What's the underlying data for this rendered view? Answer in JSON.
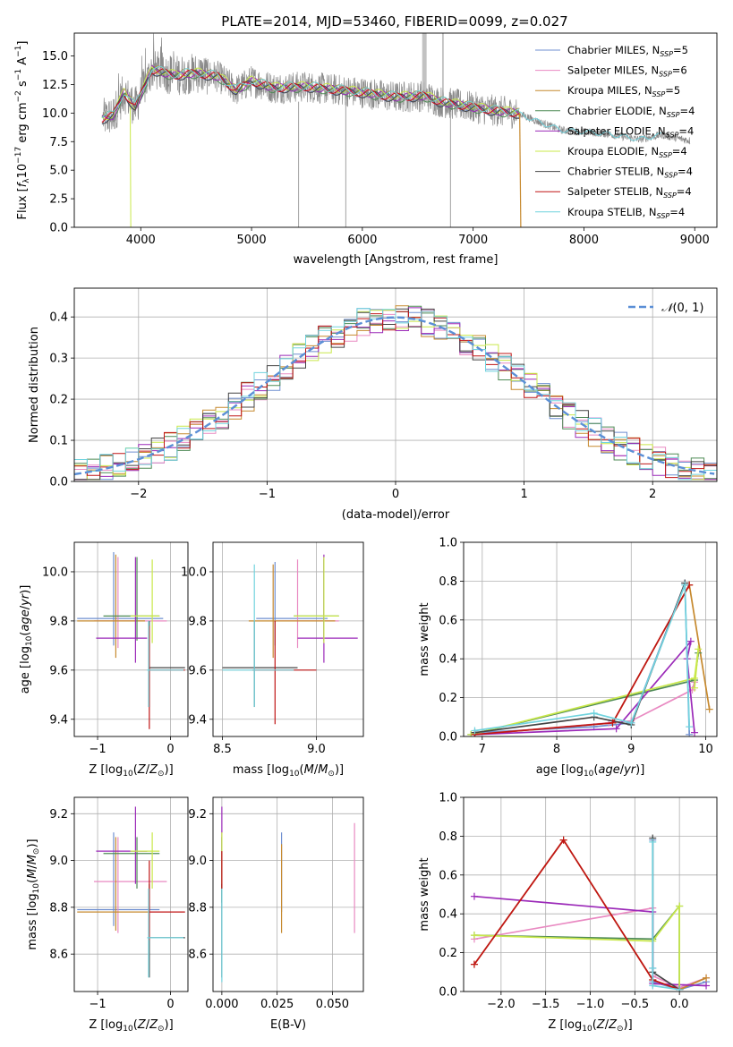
{
  "figure": {
    "title": "PLATE=2014, MJD=53460, FIBERID=0099, z=0.027"
  },
  "series_styles": [
    {
      "name": "Chabrier MILES, N_SSP=5",
      "color": "#6f8fd0"
    },
    {
      "name": "Salpeter MILES, N_SSP=6",
      "color": "#e98ac2"
    },
    {
      "name": "Kroupa MILES, N_SSP=5",
      "color": "#c6892e"
    },
    {
      "name": "Chabrier ELODIE, N_SSP=4",
      "color": "#4e8a55"
    },
    {
      "name": "Salpeter ELODIE, N_SSP=4",
      "color": "#9b29b8"
    },
    {
      "name": "Kroupa ELODIE, N_SSP=4",
      "color": "#c9e84a"
    },
    {
      "name": "Chabrier STELIB, N_SSP=4",
      "color": "#444444"
    },
    {
      "name": "Salpeter STELIB, N_SSP=4",
      "color": "#c01515"
    },
    {
      "name": "Kroupa STELIB, N_SSP=4",
      "color": "#71d3de"
    }
  ],
  "chart_data": [
    {
      "id": "spectrum",
      "type": "line",
      "xlabel": "wavelength [Angstrom, rest frame]",
      "ylabel": "Flux [f_λ 10^-17 erg cm^-2 s^-1 A^-1]",
      "xlim": [
        3400,
        9200
      ],
      "ylim": [
        0,
        17
      ],
      "xticks": [
        4000,
        5000,
        6000,
        7000,
        8000,
        9000
      ],
      "yticks": [
        0.0,
        2.5,
        5.0,
        7.5,
        10.0,
        12.5,
        15.0
      ],
      "grid": false,
      "legend_position": "top-right",
      "legend": [
        {
          "base": "Chabrier MILES, N",
          "sub": "SSP",
          "tail": "=5"
        },
        {
          "base": "Salpeter MILES, N",
          "sub": "SSP",
          "tail": "=6"
        },
        {
          "base": "Kroupa MILES, N",
          "sub": "SSP",
          "tail": "=5"
        },
        {
          "base": "Chabrier ELODIE, N",
          "sub": "SSP",
          "tail": "=4"
        },
        {
          "base": "Salpeter ELODIE, N",
          "sub": "SSP",
          "tail": "=4"
        },
        {
          "base": "Kroupa ELODIE, N",
          "sub": "SSP",
          "tail": "=4"
        },
        {
          "base": "Chabrier STELIB, N",
          "sub": "SSP",
          "tail": "=4"
        },
        {
          "base": "Salpeter STELIB, N",
          "sub": "SSP",
          "tail": "=4"
        },
        {
          "base": "Kroupa STELIB, N",
          "sub": "SSP",
          "tail": "=4"
        }
      ],
      "data_shape": [
        [
          3650,
          9.5
        ],
        [
          3750,
          9.8
        ],
        [
          3850,
          11.8
        ],
        [
          3950,
          10.5
        ],
        [
          4100,
          13.8
        ],
        [
          4300,
          13.3
        ],
        [
          4500,
          13.5
        ],
        [
          4700,
          13.2
        ],
        [
          4861,
          12.0
        ],
        [
          5000,
          12.8
        ],
        [
          5200,
          12.2
        ],
        [
          5500,
          12.3
        ],
        [
          5800,
          12.0
        ],
        [
          6000,
          11.8
        ],
        [
          6300,
          11.4
        ],
        [
          6563,
          11.5
        ],
        [
          6700,
          11.0
        ],
        [
          7000,
          10.5
        ],
        [
          7200,
          10.2
        ],
        [
          7400,
          10.0
        ],
        [
          7600,
          9.2
        ],
        [
          7800,
          8.5
        ],
        [
          8200,
          8.2
        ],
        [
          8500,
          7.7
        ],
        [
          8700,
          8.1
        ],
        [
          8950,
          7.6
        ]
      ],
      "model_range": [
        3650,
        7420
      ]
    },
    {
      "id": "residual_histogram",
      "type": "histogram",
      "xlabel": "(data-model)/error",
      "ylabel": "Normed distribution",
      "xlim": [
        -2.5,
        2.5
      ],
      "ylim": [
        0,
        0.47
      ],
      "xticks": [
        -2,
        -1,
        0,
        1,
        2
      ],
      "yticks": [
        0.0,
        0.1,
        0.2,
        0.3,
        0.4
      ],
      "grid": true,
      "legend_position": "top-right",
      "legend_label": "N(0,1)",
      "reference_curve": "standard normal density"
    },
    {
      "id": "age_vs_Z",
      "type": "errorbar",
      "xlabel": "Z [log10(Z/Z☉)]",
      "ylabel": "age [log10(age/yr)]",
      "xlim": [
        -1.32,
        0.24
      ],
      "ylim": [
        9.33,
        10.12
      ],
      "xticks": [
        -1,
        0
      ],
      "yticks": [
        9.4,
        9.6,
        9.8,
        10.0
      ],
      "grid": true,
      "points": [
        {
          "s": 0,
          "x": -0.78,
          "y": 9.81,
          "xlo": -1.28,
          "xhi": -0.1,
          "ylo": 9.7,
          "yhi": 10.08
        },
        {
          "s": 1,
          "x": -0.72,
          "y": 9.8,
          "xlo": -1.05,
          "xhi": -0.05,
          "ylo": 9.69,
          "yhi": 10.06
        },
        {
          "s": 2,
          "x": -0.75,
          "y": 9.8,
          "xlo": -1.28,
          "xhi": -0.35,
          "ylo": 9.65,
          "yhi": 10.07
        },
        {
          "s": 3,
          "x": -0.46,
          "y": 9.82,
          "xlo": -0.92,
          "xhi": -0.15,
          "ylo": 9.72,
          "yhi": 10.06
        },
        {
          "s": 4,
          "x": -0.48,
          "y": 9.73,
          "xlo": -1.02,
          "xhi": -0.32,
          "ylo": 9.63,
          "yhi": 10.06
        },
        {
          "s": 5,
          "x": -0.25,
          "y": 9.82,
          "xlo": -0.55,
          "xhi": -0.15,
          "ylo": 9.71,
          "yhi": 10.05
        },
        {
          "s": 6,
          "x": -0.29,
          "y": 9.61,
          "xlo": -0.3,
          "xhi": 0.2,
          "ylo": 9.45,
          "yhi": 9.8
        },
        {
          "s": 7,
          "x": -0.29,
          "y": 9.6,
          "xlo": -0.3,
          "xhi": 0.2,
          "ylo": 9.36,
          "yhi": 9.78
        },
        {
          "s": 8,
          "x": -0.3,
          "y": 9.6,
          "xlo": -0.32,
          "xhi": 0.18,
          "ylo": 9.45,
          "yhi": 9.8
        }
      ]
    },
    {
      "id": "age_vs_mass",
      "type": "errorbar",
      "xlabel": "mass [log10(M/M☉)]",
      "ylabel": "",
      "xlim": [
        8.45,
        9.25
      ],
      "ylim": [
        9.33,
        10.12
      ],
      "xticks": [
        8.5,
        9.0
      ],
      "yticks": [
        9.4,
        9.6,
        9.8,
        10.0
      ],
      "grid": true,
      "points": [
        {
          "s": 0,
          "x": 8.78,
          "y": 9.81,
          "xlo": 8.68,
          "xhi": 9.06,
          "ylo": 9.7,
          "yhi": 10.04
        },
        {
          "s": 1,
          "x": 8.9,
          "y": 9.8,
          "xlo": 8.78,
          "xhi": 9.12,
          "ylo": 9.69,
          "yhi": 10.05
        },
        {
          "s": 2,
          "x": 8.77,
          "y": 9.8,
          "xlo": 8.64,
          "xhi": 9.1,
          "ylo": 9.65,
          "yhi": 10.03
        },
        {
          "s": 3,
          "x": 9.04,
          "y": 9.82,
          "xlo": 8.88,
          "xhi": 9.12,
          "ylo": 9.72,
          "yhi": 10.05
        },
        {
          "s": 4,
          "x": 9.04,
          "y": 9.73,
          "xlo": 8.9,
          "xhi": 9.22,
          "ylo": 9.63,
          "yhi": 10.07
        },
        {
          "s": 5,
          "x": 9.04,
          "y": 9.82,
          "xlo": 8.88,
          "xhi": 9.12,
          "ylo": 9.71,
          "yhi": 10.06
        },
        {
          "s": 6,
          "x": 8.67,
          "y": 9.61,
          "xlo": 8.5,
          "xhi": 8.9,
          "ylo": 9.45,
          "yhi": 9.8
        },
        {
          "s": 7,
          "x": 8.78,
          "y": 9.6,
          "xlo": 8.66,
          "xhi": 9.0,
          "ylo": 9.38,
          "yhi": 9.8
        },
        {
          "s": 8,
          "x": 8.67,
          "y": 9.6,
          "xlo": 8.5,
          "xhi": 8.88,
          "ylo": 9.45,
          "yhi": 10.03
        }
      ]
    },
    {
      "id": "massweight_vs_age",
      "type": "line",
      "xlabel": "age [log10(age/yr)]",
      "ylabel": "mass weight",
      "xlim": [
        6.75,
        10.15
      ],
      "ylim": [
        0.0,
        1.0
      ],
      "xticks": [
        7,
        8,
        9,
        10
      ],
      "yticks": [
        0.0,
        0.2,
        0.4,
        0.6,
        0.8,
        1.0
      ],
      "grid": true,
      "series": [
        {
          "s": 0,
          "x": [
            6.9,
            8.5,
            9.0,
            9.72,
            9.78
          ],
          "y": [
            0.02,
            0.05,
            0.07,
            0.79,
            0.01
          ]
        },
        {
          "s": 1,
          "x": [
            6.9,
            8.7,
            9.0,
            9.82,
            9.85
          ],
          "y": [
            0.01,
            0.07,
            0.08,
            0.24,
            0.28
          ]
        },
        {
          "s": 2,
          "x": [
            6.9,
            8.75,
            9.78,
            10.05
          ],
          "y": [
            0.01,
            0.07,
            0.78,
            0.14
          ]
        },
        {
          "s": 3,
          "x": [
            6.85,
            9.85,
            9.9
          ],
          "y": [
            0.01,
            0.29,
            0.43
          ]
        },
        {
          "s": 4,
          "x": [
            6.9,
            8.8,
            9.8,
            9.75,
            9.85
          ],
          "y": [
            0.01,
            0.04,
            0.49,
            0.4,
            0.02
          ]
        },
        {
          "s": 5,
          "x": [
            6.85,
            9.85,
            9.9,
            9.85
          ],
          "y": [
            0.01,
            0.3,
            0.45,
            0.25
          ]
        },
        {
          "s": 6,
          "x": [
            6.9,
            8.5,
            9.0,
            9.72
          ],
          "y": [
            0.02,
            0.1,
            0.06,
            0.79
          ]
        },
        {
          "s": 7,
          "x": [
            6.9,
            8.75,
            9.78
          ],
          "y": [
            0.01,
            0.07,
            0.78
          ]
        },
        {
          "s": 8,
          "x": [
            6.9,
            8.5,
            9.0,
            9.72,
            9.78
          ],
          "y": [
            0.03,
            0.12,
            0.07,
            0.78,
            0.05
          ]
        }
      ]
    },
    {
      "id": "mass_vs_Z",
      "type": "errorbar",
      "xlabel": "Z [log10(Z/Z☉)]",
      "ylabel": "mass [log10(M/M☉)]",
      "xlim": [
        -1.32,
        0.24
      ],
      "ylim": [
        8.44,
        9.27
      ],
      "xticks": [
        -1,
        0
      ],
      "yticks": [
        8.6,
        8.8,
        9.0,
        9.2
      ],
      "grid": true,
      "points": [
        {
          "s": 0,
          "x": -0.78,
          "y": 8.79,
          "xlo": -1.28,
          "xhi": -0.15,
          "ylo": 8.72,
          "yhi": 9.12
        },
        {
          "s": 1,
          "x": -0.72,
          "y": 8.91,
          "xlo": -1.05,
          "xhi": -0.05,
          "ylo": 8.69,
          "yhi": 9.1
        },
        {
          "s": 2,
          "x": -0.75,
          "y": 8.78,
          "xlo": -1.28,
          "xhi": -0.3,
          "ylo": 8.7,
          "yhi": 9.1
        },
        {
          "s": 3,
          "x": -0.46,
          "y": 9.03,
          "xlo": -0.92,
          "xhi": -0.15,
          "ylo": 8.88,
          "yhi": 9.1
        },
        {
          "s": 4,
          "x": -0.48,
          "y": 9.04,
          "xlo": -1.02,
          "xhi": -0.32,
          "ylo": 8.9,
          "yhi": 9.23
        },
        {
          "s": 5,
          "x": -0.25,
          "y": 9.04,
          "xlo": -0.55,
          "xhi": -0.15,
          "ylo": 8.88,
          "yhi": 9.12
        },
        {
          "s": 6,
          "x": -0.29,
          "y": 8.67,
          "xlo": -0.3,
          "xhi": 0.2,
          "ylo": 8.5,
          "yhi": 8.9
        },
        {
          "s": 7,
          "x": -0.29,
          "y": 8.78,
          "xlo": -0.3,
          "xhi": 0.2,
          "ylo": 8.66,
          "yhi": 9.0
        },
        {
          "s": 8,
          "x": -0.3,
          "y": 8.67,
          "xlo": -0.32,
          "xhi": 0.18,
          "ylo": 8.5,
          "yhi": 8.88
        }
      ]
    },
    {
      "id": "mass_vs_EBV",
      "type": "errorbar",
      "xlabel": "E(B-V)",
      "ylabel": "",
      "xlim": [
        -0.004,
        0.064
      ],
      "ylim": [
        8.44,
        9.27
      ],
      "xticks": [
        0.0,
        0.025,
        0.05
      ],
      "yticks": [
        8.6,
        8.8,
        9.0,
        9.2
      ],
      "grid": true,
      "points": [
        {
          "s": 0,
          "x": 0.027,
          "y": 8.95,
          "xlo": 0.027,
          "xhi": 0.027,
          "ylo": 8.78,
          "yhi": 9.12
        },
        {
          "s": 1,
          "x": 0.06,
          "y": 8.92,
          "xlo": 0.06,
          "xhi": 0.06,
          "ylo": 8.69,
          "yhi": 9.16
        },
        {
          "s": 2,
          "x": 0.027,
          "y": 8.88,
          "xlo": 0.027,
          "xhi": 0.027,
          "ylo": 8.69,
          "yhi": 9.07
        },
        {
          "s": 3,
          "x": 0.0,
          "y": 8.96,
          "xlo": 0.0,
          "xhi": 0.0,
          "ylo": 8.82,
          "yhi": 9.1
        },
        {
          "s": 4,
          "x": 0.0,
          "y": 9.06,
          "xlo": 0.0,
          "xhi": 0.0,
          "ylo": 8.89,
          "yhi": 9.23
        },
        {
          "s": 5,
          "x": 0.0,
          "y": 9.0,
          "xlo": 0.0,
          "xhi": 0.0,
          "ylo": 8.88,
          "yhi": 9.12
        },
        {
          "s": 6,
          "x": 0.0,
          "y": 8.7,
          "xlo": 0.0,
          "xhi": 0.0,
          "ylo": 8.5,
          "yhi": 8.9
        },
        {
          "s": 7,
          "x": 0.0,
          "y": 8.96,
          "xlo": 0.0,
          "xhi": 0.0,
          "ylo": 8.88,
          "yhi": 9.04
        },
        {
          "s": 8,
          "x": 0.0,
          "y": 8.68,
          "xlo": 0.0,
          "xhi": 0.0,
          "ylo": 8.48,
          "yhi": 8.88
        }
      ]
    },
    {
      "id": "massweight_vs_Z",
      "type": "line",
      "xlabel": "Z [log10(Z/Z☉)]",
      "ylabel": "mass weight",
      "xlim": [
        -2.42,
        0.42
      ],
      "ylim": [
        0.0,
        1.0
      ],
      "xticks": [
        -2.0,
        -1.5,
        -1.0,
        -0.5,
        0.0
      ],
      "yticks": [
        0.0,
        0.2,
        0.4,
        0.6,
        0.8,
        1.0
      ],
      "grid": true,
      "series": [
        {
          "s": 0,
          "x": [
            -0.3,
            -0.3,
            -0.3,
            0.0,
            0.3
          ],
          "y": [
            0.78,
            0.12,
            0.05,
            0.01,
            0.05
          ]
        },
        {
          "s": 1,
          "x": [
            -2.3,
            -0.3,
            -0.3,
            0.0,
            0.3
          ],
          "y": [
            0.27,
            0.43,
            0.08,
            0.02,
            0.07
          ]
        },
        {
          "s": 2,
          "x": [
            -2.3,
            -1.3,
            -0.3,
            0.0,
            0.3
          ],
          "y": [
            0.14,
            0.78,
            0.06,
            0.01,
            0.07
          ]
        },
        {
          "s": 3,
          "x": [
            -2.3,
            -0.3,
            0.0,
            0.0
          ],
          "y": [
            0.29,
            0.27,
            0.44,
            0.01
          ]
        },
        {
          "s": 4,
          "x": [
            -2.3,
            -0.3,
            -0.3,
            0.3
          ],
          "y": [
            0.49,
            0.41,
            0.04,
            0.03
          ]
        },
        {
          "s": 5,
          "x": [
            -2.3,
            -0.3,
            0.0,
            0.0
          ],
          "y": [
            0.29,
            0.26,
            0.44,
            0.01
          ]
        },
        {
          "s": 6,
          "x": [
            -0.3,
            -0.3,
            0.0
          ],
          "y": [
            0.79,
            0.1,
            0.01
          ]
        },
        {
          "s": 7,
          "x": [
            -2.3,
            -1.3,
            -0.3,
            0.0
          ],
          "y": [
            0.14,
            0.78,
            0.06,
            0.01
          ]
        },
        {
          "s": 8,
          "x": [
            -0.3,
            -0.3,
            -0.3,
            0.0
          ],
          "y": [
            0.77,
            0.12,
            0.03,
            0.01
          ]
        }
      ]
    }
  ]
}
